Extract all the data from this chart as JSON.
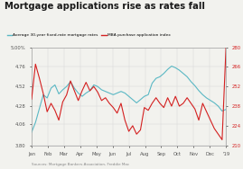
{
  "title": "Mortgage applications rise as rates fall",
  "legend1": "Average 30-year fixed-rate mortgage rates",
  "legend2": "MBA purchase application index",
  "source": "Sources: Mortgage Bankers Association, Freddie Mac",
  "x_labels": [
    "Jan",
    "Feb",
    "Mar",
    "Apr",
    "May",
    "Jun",
    "Jul",
    "Aug",
    "Sep",
    "Oct",
    "Nov",
    "Dec",
    "'19"
  ],
  "left_ylim": [
    3.8,
    5.0
  ],
  "right_ylim": [
    210,
    280
  ],
  "left_yticks": [
    3.8,
    4.06,
    4.28,
    4.52,
    4.76,
    5.0
  ],
  "left_yticklabels": [
    "3.80",
    "4.06",
    "4.28",
    "4.52",
    "4.76",
    "5.00%"
  ],
  "right_yticks": [
    210,
    224,
    238,
    252,
    266,
    280
  ],
  "blue_color": "#5ab8c4",
  "red_color": "#d42020",
  "bg_color": "#f2f2ee",
  "grid_color": "#d8d8d8",
  "title_color": "#1a1a1a",
  "tick_color": "#555555",
  "blue_data": [
    3.96,
    4.08,
    4.25,
    4.42,
    4.38,
    4.5,
    4.54,
    4.43,
    4.48,
    4.52,
    4.58,
    4.5,
    4.44,
    4.4,
    4.44,
    4.47,
    4.54,
    4.52,
    4.48,
    4.46,
    4.44,
    4.42,
    4.44,
    4.46,
    4.44,
    4.4,
    4.36,
    4.32,
    4.36,
    4.4,
    4.42,
    4.56,
    4.62,
    4.64,
    4.68,
    4.73,
    4.77,
    4.75,
    4.72,
    4.68,
    4.64,
    4.58,
    4.53,
    4.47,
    4.42,
    4.38,
    4.35,
    4.32,
    4.28,
    4.22,
    4.24
  ],
  "red_data": [
    243,
    268,
    258,
    247,
    234,
    240,
    235,
    228,
    241,
    246,
    256,
    249,
    242,
    249,
    255,
    249,
    252,
    248,
    242,
    244,
    240,
    237,
    233,
    240,
    228,
    220,
    224,
    218,
    221,
    237,
    235,
    240,
    244,
    240,
    237,
    244,
    238,
    245,
    238,
    240,
    244,
    240,
    236,
    228,
    240,
    234,
    228,
    222,
    218,
    214,
    280
  ]
}
